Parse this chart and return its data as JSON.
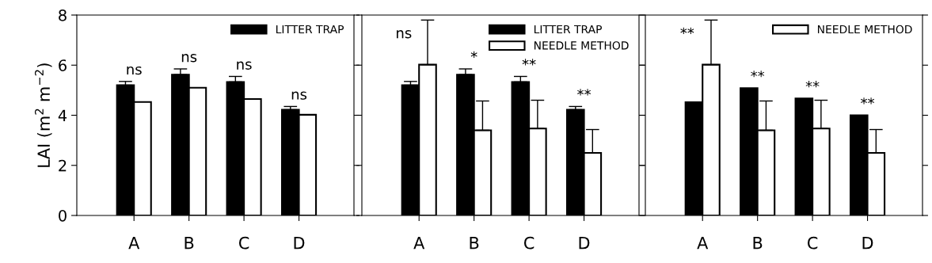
{
  "chart_data": [
    {
      "type": "bar",
      "ylabel": "LAI (m$^{2}$ m$^{−2}$)",
      "categories": [
        "A",
        "B",
        "C",
        "D"
      ],
      "ylim": [
        0,
        8
      ],
      "yticks": [
        0,
        2,
        4,
        6,
        8
      ],
      "grid": false,
      "legend": "top right",
      "series": [
        {
          "name": "LITTER TRAP",
          "color": "#000000",
          "values": [
            5.2,
            5.62,
            5.33,
            4.22
          ],
          "errors": [
            [
              5.2,
              5.35
            ],
            [
              5.62,
              5.85
            ],
            [
              5.33,
              5.55
            ],
            [
              4.22,
              4.35
            ]
          ]
        },
        {
          "color": "#ffffff",
          "values": [
            4.53,
            5.1,
            4.65,
            4.02
          ]
        }
      ],
      "annotations": [
        "ns",
        "ns",
        "ns",
        "ns"
      ]
    },
    {
      "type": "bar",
      "categories": [
        "A",
        "B",
        "C",
        "D"
      ],
      "ylim": [
        0,
        8
      ],
      "yticks": [
        0,
        2,
        4,
        6,
        8
      ],
      "grid": false,
      "legend": "top right",
      "tick_labels": "x",
      "series": [
        {
          "name": "LITTER TRAP",
          "color": "#000000",
          "values": [
            5.2,
            5.62,
            5.33,
            4.22
          ],
          "errors": [
            [
              5.2,
              5.35
            ],
            [
              5.62,
              5.85
            ],
            [
              5.33,
              5.55
            ],
            [
              4.22,
              4.35
            ]
          ]
        },
        {
          "name": "NEEDLE METHOD",
          "color": "#ffffff",
          "values": [
            6.02,
            3.4,
            3.47,
            2.5
          ],
          "errors": [
            [
              6.02,
              7.8
            ],
            [
              3.4,
              4.57
            ],
            [
              3.47,
              4.6
            ],
            [
              2.5,
              3.43
            ]
          ]
        }
      ],
      "annotations": [
        "ns",
        "*",
        "**",
        "**"
      ]
    },
    {
      "type": "bar",
      "categories": [
        "A",
        "B",
        "C",
        "D"
      ],
      "ylim": [
        0,
        8
      ],
      "yticks": [
        0,
        2,
        4,
        6,
        8
      ],
      "grid": false,
      "legend": "top right",
      "tick_labels": "x",
      "series": [
        {
          "color": "#000000",
          "values": [
            4.52,
            5.08,
            4.67,
            4.0
          ]
        },
        {
          "name": "NEEDLE METHOD",
          "color": "#ffffff",
          "values": [
            6.02,
            3.4,
            3.47,
            2.5
          ],
          "errors": [
            [
              6.02,
              7.8
            ],
            [
              3.4,
              4.57
            ],
            [
              3.47,
              4.6
            ],
            [
              2.5,
              3.43
            ]
          ]
        }
      ],
      "annotations": [
        "**",
        "**",
        "**",
        "**"
      ]
    }
  ]
}
